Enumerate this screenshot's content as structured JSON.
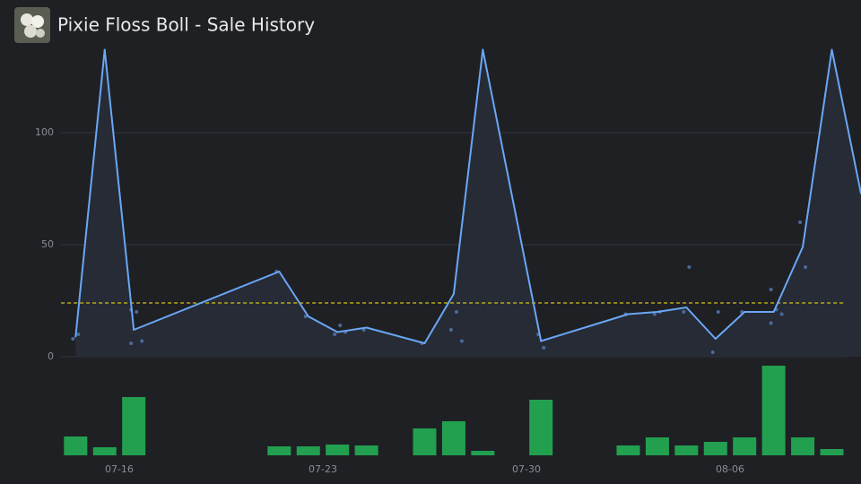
{
  "chart_data": {
    "type": "line",
    "title": "Pixie Floss Boll - Sale History",
    "categories": [
      null,
      null,
      "07-16",
      null,
      null,
      null,
      null,
      null,
      null,
      "07-23",
      null,
      null,
      null,
      null,
      null,
      null,
      "07-30",
      null,
      null,
      null,
      null,
      null,
      null,
      "08-06",
      null,
      null,
      null,
      null
    ],
    "line": {
      "color": "#6aa7f5",
      "values": [
        9,
        137,
        12,
        null,
        null,
        null,
        null,
        38,
        18,
        11,
        13,
        null,
        6,
        28,
        137,
        null,
        7,
        null,
        null,
        19,
        20,
        22,
        8,
        20,
        20,
        49,
        137,
        73
      ]
    },
    "sales": {
      "color": "#4a6a9a",
      "values": [
        [
          8,
          10
        ],
        [],
        [
          21,
          20,
          7,
          6
        ],
        [],
        [],
        [],
        [],
        [
          38
        ],
        [
          18
        ],
        [
          10,
          14,
          11
        ],
        [
          12
        ],
        [],
        [
          6
        ],
        [
          12,
          20,
          7
        ],
        [],
        [],
        [
          10,
          4
        ],
        [],
        [],
        [
          19
        ],
        [
          19,
          20
        ],
        [
          20,
          40
        ],
        [
          2,
          20
        ],
        [
          20
        ],
        [
          30,
          21,
          19,
          15
        ],
        [
          60,
          40
        ],
        [],
        []
      ]
    },
    "volume": {
      "color": "#22a050",
      "values": [
        21,
        9,
        65,
        null,
        null,
        null,
        null,
        10,
        10,
        12,
        11,
        null,
        30,
        38,
        5,
        null,
        62,
        null,
        null,
        11,
        20,
        11,
        15,
        20,
        100,
        20,
        7,
        null
      ]
    },
    "average": {
      "color": "#d4c21a",
      "value": 24
    },
    "ylim": [
      0,
      137
    ],
    "yticks": [
      0,
      50,
      100
    ],
    "grid": true
  }
}
